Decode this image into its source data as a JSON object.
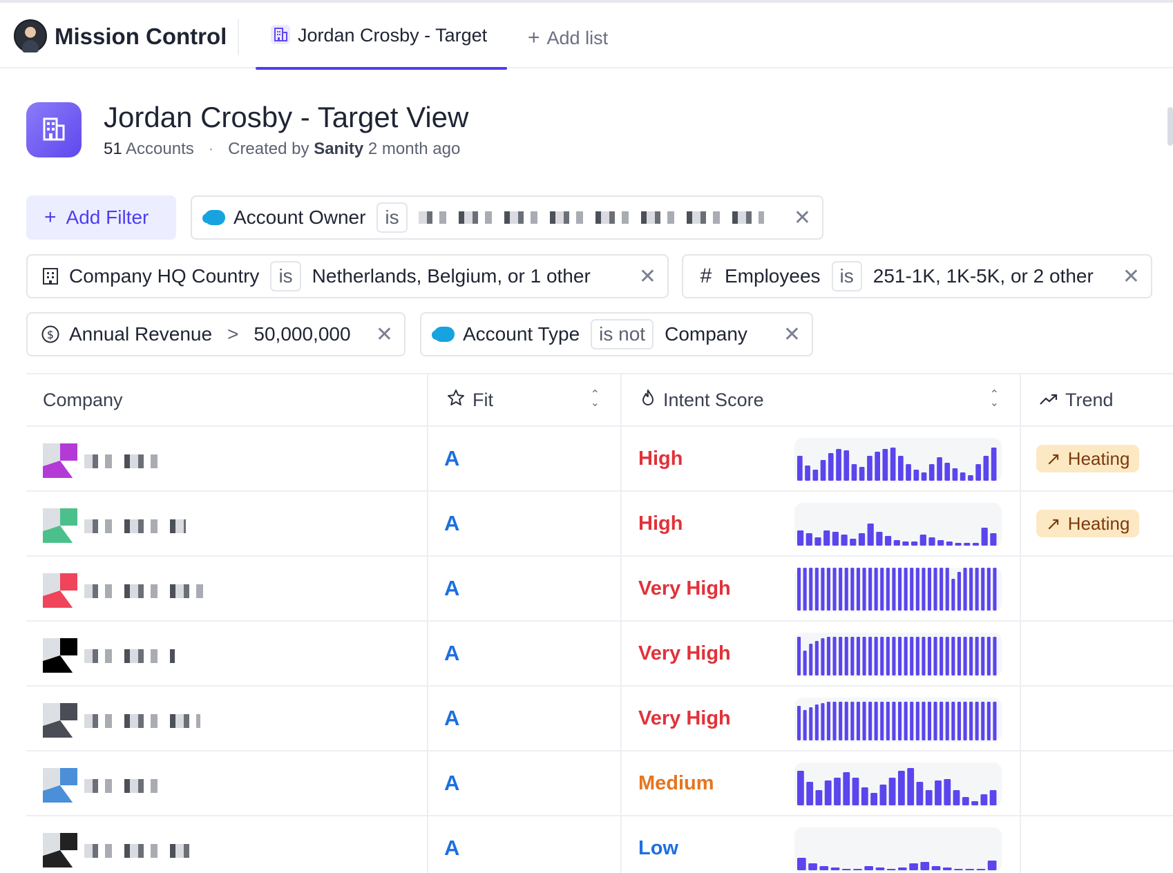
{
  "app": {
    "title": "Mission Control"
  },
  "tabs": [
    {
      "label": "Jordan Crosby - Target",
      "active": true,
      "icon": "building-icon"
    }
  ],
  "add_list_label": "Add list",
  "header": {
    "title": "Jordan Crosby - Target View",
    "count": "51",
    "count_unit": "Accounts",
    "created_by_prefix": "Created by",
    "creator": "Sanity",
    "created_ago": "2 month ago"
  },
  "filters": {
    "add_filter_label": "Add Filter",
    "chips": [
      {
        "field": "Account Owner",
        "operator": "is",
        "value": "",
        "icon": "salesforce-icon"
      },
      {
        "field": "Company HQ Country",
        "operator": "is",
        "value": "Netherlands, Belgium, or 1 other",
        "icon": "building-icon"
      },
      {
        "field": "Employees",
        "operator": "is",
        "value": "251-1K, 1K-5K, or 2 other",
        "icon": "hash-icon"
      },
      {
        "field": "Annual Revenue",
        "operator": ">",
        "value": "50,000,000",
        "icon": "dollar-icon"
      },
      {
        "field": "Account Type",
        "operator": "is not",
        "value": "Company",
        "icon": "salesforce-icon"
      }
    ]
  },
  "table": {
    "columns": [
      {
        "label": "Company",
        "icon": ""
      },
      {
        "label": "Fit",
        "icon": "star-icon",
        "sortable": true
      },
      {
        "label": "Intent Score",
        "icon": "flame-icon",
        "sortable": true
      },
      {
        "label": "Trend",
        "icon": "trend-up-icon"
      }
    ],
    "rows": [
      {
        "fit": "A",
        "intent": "High",
        "intent_color": "#e0323a",
        "trend": "Heating",
        "logo": "#b43ad6"
      },
      {
        "fit": "A",
        "intent": "High",
        "intent_color": "#e0323a",
        "trend": "Heating",
        "logo": "#4cc08a"
      },
      {
        "fit": "A",
        "intent": "Very High",
        "intent_color": "#e0323a",
        "trend": "",
        "logo": "#f0445a"
      },
      {
        "fit": "A",
        "intent": "Very High",
        "intent_color": "#e0323a",
        "trend": "",
        "logo": "#000000"
      },
      {
        "fit": "A",
        "intent": "Very High",
        "intent_color": "#e0323a",
        "trend": "",
        "logo": "#4a4d55"
      },
      {
        "fit": "A",
        "intent": "Medium",
        "intent_color": "#e5751f",
        "trend": "",
        "logo": "#4a8fd8"
      },
      {
        "fit": "A",
        "intent": "Low",
        "intent_color": "#1d6fe0",
        "trend": "",
        "logo": "#222222"
      }
    ]
  },
  "colors": {
    "accent": "#4f3df0",
    "fit": "#1d6fe0",
    "bar": "#5b45ec"
  }
}
